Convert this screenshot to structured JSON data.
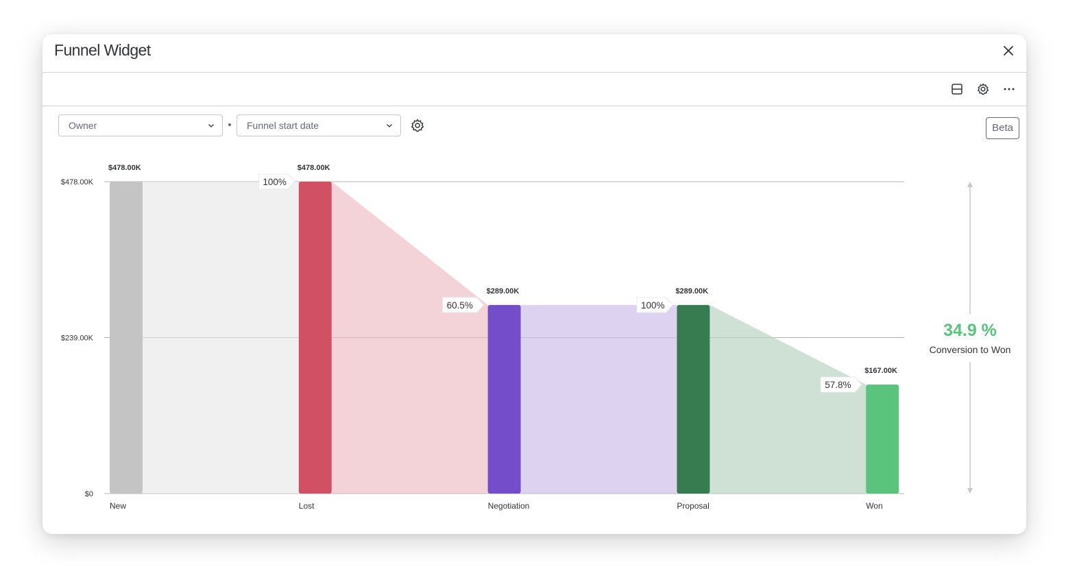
{
  "modal": {
    "title": "Funnel Widget"
  },
  "toolbar": {
    "icons": [
      "layout-icon",
      "gear-icon",
      "more-icon"
    ]
  },
  "filters": {
    "owner_label": "Owner",
    "date_label": "Funnel start date"
  },
  "badge": "Beta",
  "conversion": {
    "value": "34.9 %",
    "label": "Conversion to Won"
  },
  "chart_data": {
    "type": "bar",
    "categories": [
      "New",
      "Lost",
      "Negotiation",
      "Proposal",
      "Won"
    ],
    "values": [
      478,
      478,
      289,
      289,
      167
    ],
    "value_labels": [
      "$478.00K",
      "$478.00K",
      "$289.00K",
      "$289.00K",
      "$167.00K"
    ],
    "percent_labels": [
      "",
      "100%",
      "60.5%",
      "100%",
      "57.8%"
    ],
    "ylim": [
      0,
      478
    ],
    "yticks": [
      0,
      239,
      478
    ],
    "ytick_labels": [
      "$0",
      "$239.00K",
      "$478.00K"
    ],
    "grid": true,
    "colors": [
      "#c4c4c4",
      "#d25063",
      "#744dcb",
      "#377c51",
      "#5ac47d"
    ],
    "band_colors": [
      "#f0f0f0",
      "#f3d3d8",
      "#ddd3f1",
      "#cfe1d5"
    ]
  }
}
